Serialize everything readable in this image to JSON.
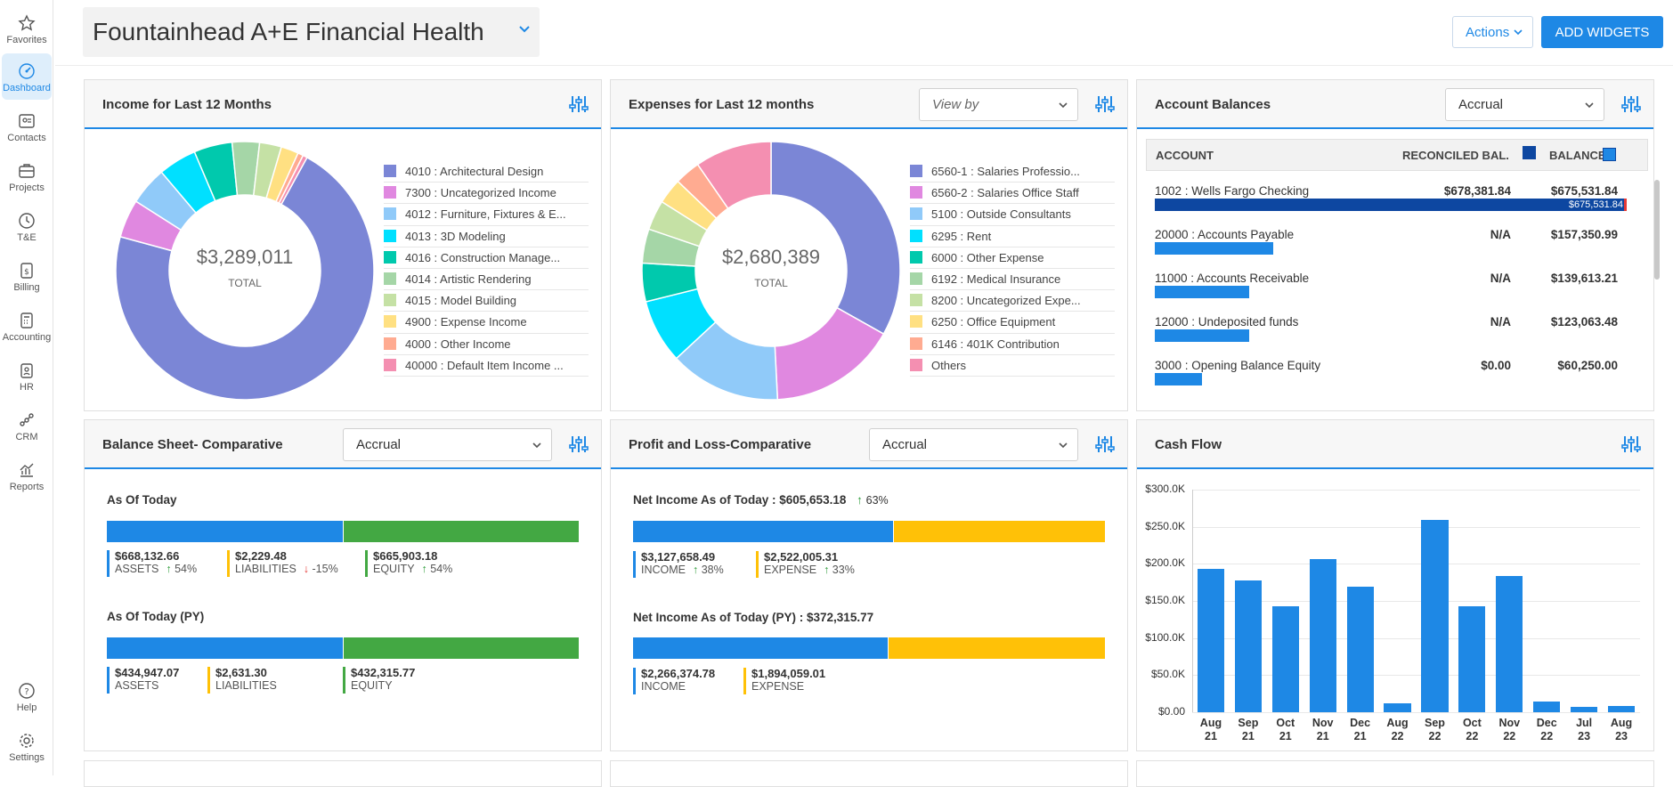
{
  "sidebar": {
    "items": [
      {
        "label": "Favorites",
        "icon": "star-icon"
      },
      {
        "label": "Dashboard",
        "icon": "dashboard-icon",
        "active": true
      },
      {
        "label": "Contacts",
        "icon": "contacts-icon"
      },
      {
        "label": "Projects",
        "icon": "projects-icon"
      },
      {
        "label": "T&E",
        "icon": "clock-icon"
      },
      {
        "label": "Billing",
        "icon": "billing-icon"
      },
      {
        "label": "Accounting",
        "icon": "calculator-icon"
      },
      {
        "label": "HR",
        "icon": "hr-icon"
      },
      {
        "label": "CRM",
        "icon": "crm-icon"
      },
      {
        "label": "Reports",
        "icon": "reports-icon"
      }
    ],
    "bottom": [
      {
        "label": "Help",
        "icon": "help-icon"
      },
      {
        "label": "Settings",
        "icon": "gear-icon"
      }
    ]
  },
  "header": {
    "title": "Fountainhead A+E Financial Health",
    "actions_label": "Actions",
    "add_widgets_label": "ADD WIDGETS"
  },
  "income": {
    "title": "Income for Last 12 Months",
    "total": "$3,289,011",
    "total_label": "TOTAL",
    "legend": [
      {
        "label": "4010 : Architectural Design",
        "color": "#7b86d6"
      },
      {
        "label": "7300 : Uncategorized Income",
        "color": "#e088e0"
      },
      {
        "label": "4012 : Furniture, Fixtures & E...",
        "color": "#90caf9"
      },
      {
        "label": "4013 : 3D Modeling",
        "color": "#00e0ff"
      },
      {
        "label": "4016 : Construction Manage...",
        "color": "#00c9ad"
      },
      {
        "label": "4014 : Artistic Rendering",
        "color": "#a5d6a7"
      },
      {
        "label": "4015 : Model Building",
        "color": "#c5e1a5"
      },
      {
        "label": "4900 : Expense Income",
        "color": "#ffe082"
      },
      {
        "label": "4000 : Other Income",
        "color": "#ffab91"
      },
      {
        "label": "40000 : Default Item Income ...",
        "color": "#f48fb1"
      }
    ]
  },
  "expenses": {
    "title": "Expenses for Last 12 months",
    "view_by_placeholder": "View by",
    "total": "$2,680,389",
    "total_label": "TOTAL",
    "legend": [
      {
        "label": "6560-1 : Salaries Professio...",
        "color": "#7b86d6"
      },
      {
        "label": "6560-2 : Salaries Office Staff",
        "color": "#e088e0"
      },
      {
        "label": "5100 : Outside Consultants",
        "color": "#90caf9"
      },
      {
        "label": "6295 : Rent",
        "color": "#00e0ff"
      },
      {
        "label": "6000 : Other Expense",
        "color": "#00c9ad"
      },
      {
        "label": "6192 : Medical Insurance",
        "color": "#a5d6a7"
      },
      {
        "label": "8200 : Uncategorized Expe...",
        "color": "#c5e1a5"
      },
      {
        "label": "6250 : Office Equipment",
        "color": "#ffe082"
      },
      {
        "label": "6146 : 401K Contribution",
        "color": "#ffab91"
      },
      {
        "label": "Others",
        "color": "#f48fb1"
      }
    ]
  },
  "accounts": {
    "title": "Account Balances",
    "basis": "Accrual",
    "col_account": "ACCOUNT",
    "col_reconciled": "RECONCILED BAL.",
    "col_balance": "BALANCE",
    "rows": [
      {
        "name": "1002 : Wells Fargo Checking",
        "reconciled": "$678,381.84",
        "balance": "$675,531.84",
        "bar_label": "$675,531.84",
        "share": 1.0,
        "dark": true
      },
      {
        "name": "20000 : Accounts Payable",
        "reconciled": "N/A",
        "balance": "$157,350.99",
        "share": 0.25
      },
      {
        "name": "11000 : Accounts Receivable",
        "reconciled": "N/A",
        "balance": "$139,613.21",
        "share": 0.2
      },
      {
        "name": "12000 : Undeposited funds",
        "reconciled": "N/A",
        "balance": "$123,063.48",
        "share": 0.2
      },
      {
        "name": "3000 : Opening Balance Equity",
        "reconciled": "$0.00",
        "balance": "$60,250.00",
        "share": 0.1
      }
    ]
  },
  "balance_sheet": {
    "title": "Balance Sheet- Comparative",
    "basis": "Accrual",
    "today_label": "As Of Today",
    "today_assets_share": 0.5,
    "today": [
      {
        "value": "$668,132.66",
        "label": "ASSETS",
        "change": "54%",
        "dir": "up",
        "color": "#1e88e5"
      },
      {
        "value": "$2,229.48",
        "label": "LIABILITIES",
        "change": "-15%",
        "dir": "down",
        "color": "#ffc107"
      },
      {
        "value": "$665,903.18",
        "label": "EQUITY",
        "change": "54%",
        "dir": "up",
        "color": "#43a843"
      }
    ],
    "py_label": "As Of Today (PY)",
    "py_assets_share": 0.5,
    "py": [
      {
        "value": "$434,947.07",
        "label": "ASSETS",
        "color": "#1e88e5"
      },
      {
        "value": "$2,631.30",
        "label": "LIABILITIES",
        "color": "#ffc107"
      },
      {
        "value": "$432,315.77",
        "label": "EQUITY",
        "color": "#43a843"
      }
    ]
  },
  "pnl": {
    "title": "Profit and Loss-Comparative",
    "basis": "Accrual",
    "today_label": "Net Income As of Today : $605,653.18",
    "today_change": "63%",
    "today_income_share": 0.55,
    "today": [
      {
        "value": "$3,127,658.49",
        "label": "INCOME",
        "change": "38%",
        "dir": "up",
        "color": "#1e88e5"
      },
      {
        "value": "$2,522,005.31",
        "label": "EXPENSE",
        "change": "33%",
        "dir": "up",
        "color": "#ffc107"
      }
    ],
    "py_label": "Net Income As of Today (PY) : $372,315.77",
    "py_income_share": 0.54,
    "py": [
      {
        "value": "$2,266,374.78",
        "label": "INCOME",
        "color": "#1e88e5"
      },
      {
        "value": "$1,894,059.01",
        "label": "EXPENSE",
        "color": "#ffc107"
      }
    ]
  },
  "cash_flow": {
    "title": "Cash Flow"
  },
  "chart_data": {
    "type": "bar",
    "title": "Cash Flow",
    "categories": [
      "Aug 21",
      "Sep 21",
      "Oct 21",
      "Nov 21",
      "Dec 21",
      "Aug 22",
      "Sep 22",
      "Oct 22",
      "Nov 22",
      "Dec 22",
      "Jul 23",
      "Aug 23"
    ],
    "values": [
      193000,
      178000,
      143000,
      206000,
      169000,
      12000,
      259000,
      143000,
      184000,
      15000,
      7000,
      8000
    ],
    "ylim": [
      0,
      300000
    ],
    "yticks": [
      "$0.00",
      "$50.0K",
      "$100.0K",
      "$150.0K",
      "$200.0K",
      "$250.0K",
      "$300.0K"
    ],
    "color": "#1e88e5"
  },
  "donuts": [
    {
      "name": "income",
      "values": [
        52,
        3.5,
        3.5,
        3.5,
        3.5,
        2.5,
        2,
        1.6,
        0.5,
        0.4
      ],
      "start": 8
    },
    {
      "name": "expenses",
      "values": [
        31,
        15,
        13,
        7.5,
        4.5,
        4,
        3.5,
        3,
        3,
        9
      ],
      "start": 0
    }
  ]
}
